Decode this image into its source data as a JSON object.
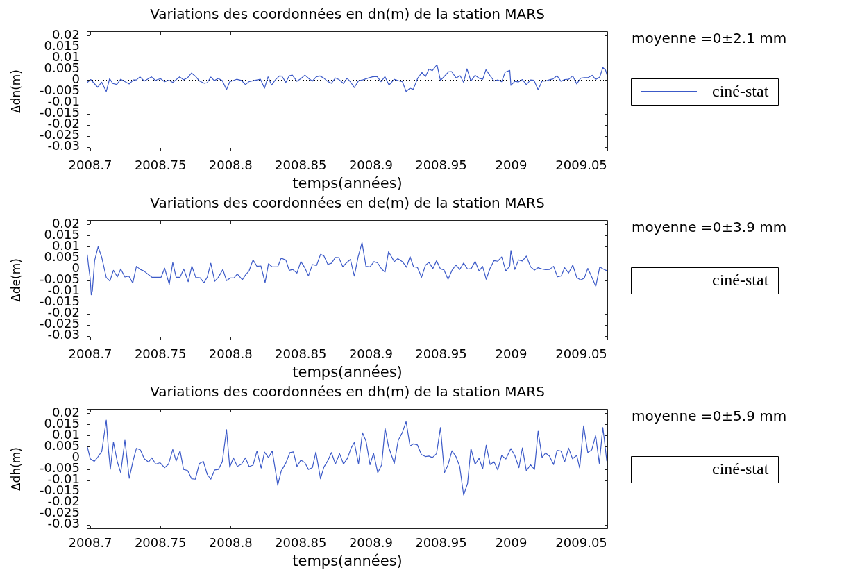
{
  "chart_data": [
    {
      "type": "line",
      "title": "Variations des coordonnées en dn(m) de la station MARS",
      "xlabel": "temps(années)",
      "ylabel": "Δdn(m)",
      "annotations": [
        "moyenne =0±2.1 mm"
      ],
      "legend": "right",
      "marker": "none",
      "line_style": "solid",
      "xlim": [
        2008.6975,
        2009.069
      ],
      "ylim": [
        -0.032,
        0.022
      ],
      "xticks": [
        2008.7,
        2008.75,
        2008.8,
        2008.85,
        2008.9,
        2008.95,
        2009,
        2009.05
      ],
      "yticks": [
        0.02,
        0.015,
        0.01,
        0.005,
        0,
        -0.005,
        -0.01,
        -0.015,
        -0.02,
        -0.025,
        -0.03
      ],
      "ref_lines": [
        {
          "axis": "y",
          "value": 0,
          "color": "#000000",
          "line_style": "dotted"
        }
      ],
      "x": [
        2008.6979,
        2008.7003,
        2008.7053,
        2008.7081,
        2008.7114,
        2008.7138,
        2008.716,
        2008.7189,
        2008.7217,
        2008.7278,
        2008.7308,
        2008.7329,
        2008.7354,
        2008.7385,
        2008.7436,
        2008.7464,
        2008.75,
        2008.753,
        2008.756,
        2008.7588,
        2008.7637,
        2008.7665,
        2008.7694,
        2008.7722,
        2008.7749,
        2008.7777,
        2008.7813,
        2008.7834,
        2008.7859,
        2008.7884,
        2008.7912,
        2008.7941,
        2008.7971,
        2008.7994,
        2008.8043,
        2008.8078,
        2008.8106,
        2008.813,
        2008.8158,
        2008.8213,
        2008.8242,
        2008.8267,
        2008.8292,
        2008.832,
        2008.8348,
        2008.8366,
        2008.8394,
        2008.8418,
        2008.844,
        2008.8473,
        2008.8501,
        2008.853,
        2008.8558,
        2008.8583,
        2008.8611,
        2008.8637,
        2008.8665,
        2008.8693,
        2008.8719,
        2008.8747,
        2008.8772,
        2008.8805,
        2008.883,
        2008.8854,
        2008.8882,
        2008.8912,
        2008.8945,
        2008.8978,
        2008.9011,
        2008.9044,
        2008.9072,
        2008.91,
        2008.9129,
        2008.9167,
        2008.9195,
        2008.9225,
        2008.9251,
        2008.9279,
        2008.9302,
        2008.9333,
        2008.9364,
        2008.9389,
        2008.9414,
        2008.9438,
        2008.9471,
        2008.9496,
        2008.9529,
        2008.9554,
        2008.9575,
        2008.9608,
        2008.9636,
        2008.9661,
        2008.9685,
        2008.9713,
        2008.9743,
        2008.9771,
        2008.9797,
        2008.982,
        2008.985,
        2008.9878,
        2008.9904,
        2008.9932,
        2008.9957,
        2008.999,
        2008.9998,
        2009.0026,
        2009.0052,
        2009.008,
        2009.0108,
        2009.0138,
        2009.0162,
        2009.0192,
        2009.022,
        2009.0245,
        2009.0273,
        2009.0299,
        2009.0327,
        2009.0355,
        2009.0381,
        2009.0409,
        2009.0439,
        2009.0467,
        2009.0495,
        2009.0521,
        2009.0546,
        2009.0577,
        2009.0603,
        2009.0631,
        2009.0653,
        2009.0672,
        2009.0686
      ],
      "series": [
        {
          "name": "ciné-stat",
          "color": "#3c5ac8",
          "values": [
            -0.001,
            0.0003,
            -0.0032,
            -0.0009,
            -0.0051,
            0.0007,
            -0.0015,
            -0.0019,
            0.0004,
            -0.0017,
            0.0001,
            0.0001,
            0.0015,
            -0.0004,
            0.0015,
            -0.0001,
            0.0007,
            -0.0007,
            0,
            -0.001,
            0.0015,
            0.0002,
            0.0011,
            0.0032,
            0.0018,
            -0.0003,
            -0.0014,
            -0.0011,
            0.0014,
            -0.0002,
            0.0008,
            -0.0002,
            -0.0042,
            -0.0007,
            0.0004,
            -0.0001,
            -0.002,
            -0.0007,
            -0.0003,
            0.0004,
            -0.0036,
            0.0015,
            -0.0022,
            0.0002,
            0.0019,
            0.0018,
            -0.001,
            0.002,
            0.0023,
            -0.0005,
            0.0007,
            0.0023,
            0.0007,
            -0.0004,
            0.0015,
            0.0019,
            0.0009,
            -0.0006,
            -0.0014,
            0.001,
            0.0003,
            -0.0015,
            0.0009,
            -0.0007,
            -0.0033,
            -0.0003,
            0.0002,
            0.0009,
            0.0015,
            0.0017,
            -0.0007,
            0.0016,
            -0.0022,
            0.0004,
            -0.0002,
            -0.0007,
            -0.0051,
            -0.0036,
            -0.0041,
            0.0008,
            0.0035,
            0.0016,
            0.005,
            0.0043,
            0.007,
            -0.0001,
            0.0021,
            0.0038,
            0.0039,
            0.001,
            0.002,
            -0.001,
            0.0051,
            -0.0004,
            0.0022,
            0.0009,
            0.0004,
            0.0047,
            0.002,
            -0.0004,
            0.0001,
            -0.0007,
            0.0036,
            0.0044,
            -0.0023,
            -0.0005,
            -0.0008,
            0.0003,
            -0.002,
            0.0001,
            0,
            -0.0043,
            -0.0004,
            -0.0004,
            0.0002,
            0.0006,
            0.002,
            -0.0005,
            0.0003,
            0.0004,
            0.0019,
            -0.0017,
            0.0009,
            0.0011,
            0.0011,
            0.0022,
            0.0003,
            0.0014,
            0.0057,
            0.0046,
            0.0018
          ]
        }
      ]
    },
    {
      "type": "line",
      "title": "Variations des coordonnées en de(m) de la station MARS",
      "xlabel": "temps(années)",
      "ylabel": "Δde(m)",
      "annotations": [
        "moyenne =0±3.9 mm"
      ],
      "legend": "right",
      "marker": "none",
      "line_style": "solid",
      "xlim": [
        2008.6975,
        2009.069
      ],
      "ylim": [
        -0.032,
        0.022
      ],
      "xticks": [
        2008.7,
        2008.75,
        2008.8,
        2008.85,
        2008.9,
        2008.95,
        2009,
        2009.05
      ],
      "yticks": [
        0.02,
        0.015,
        0.01,
        0.005,
        0,
        -0.005,
        -0.01,
        -0.015,
        -0.02,
        -0.025,
        -0.03
      ],
      "ref_lines": [
        {
          "axis": "y",
          "value": 0,
          "color": "#000000",
          "line_style": "dotted"
        }
      ],
      "x": [
        2008.6979,
        2008.6987,
        2008.6999,
        2008.7007,
        2008.7015,
        2008.7031,
        2008.7056,
        2008.7081,
        2008.7114,
        2008.714,
        2008.7165,
        2008.7193,
        2008.7217,
        2008.7247,
        2008.7275,
        2008.7303,
        2008.7329,
        2008.7357,
        2008.7382,
        2008.7439,
        2008.7505,
        2008.753,
        2008.7563,
        2008.7588,
        2008.7612,
        2008.764,
        2008.7666,
        2008.7698,
        2008.7724,
        2008.7752,
        2008.7782,
        2008.781,
        2008.7834,
        2008.7859,
        2008.7887,
        2008.7912,
        2008.7945,
        2008.7971,
        2008.7999,
        2008.8024,
        2008.8048,
        2008.8084,
        2008.8106,
        2008.8132,
        2008.816,
        2008.8188,
        2008.8216,
        2008.8246,
        2008.827,
        2008.8295,
        2008.8336,
        2008.8361,
        2008.8394,
        2008.8418,
        2008.8443,
        2008.8473,
        2008.8501,
        2008.8529,
        2008.8555,
        2008.8583,
        2008.8613,
        2008.8641,
        2008.8665,
        2008.8693,
        2008.8719,
        2008.8747,
        2008.8772,
        2008.88,
        2008.8826,
        2008.8854,
        2008.8882,
        2008.8909,
        2008.8937,
        2008.8965,
        2008.8994,
        2008.9022,
        2008.9047,
        2008.9077,
        2008.9101,
        2008.9126,
        2008.9167,
        2008.9192,
        2008.9225,
        2008.9254,
        2008.9279,
        2008.9304,
        2008.9332,
        2008.9361,
        2008.9389,
        2008.9414,
        2008.9442,
        2008.9468,
        2008.9496,
        2008.9521,
        2008.955,
        2008.9578,
        2008.9606,
        2008.9633,
        2008.9661,
        2008.9689,
        2008.9715,
        2008.9743,
        2008.9771,
        2008.9796,
        2008.9822,
        2008.985,
        2008.9878,
        2008.9904,
        2008.9932,
        2008.9962,
        2008.999,
        2008.9998,
        2009.0026,
        2009.0052,
        2009.008,
        2009.0108,
        2009.0138,
        2009.0166,
        2009.0192,
        2009.022,
        2009.0245,
        2009.0273,
        2009.0302,
        2009.033,
        2009.0357,
        2009.0381,
        2009.0409,
        2009.0439,
        2009.0467,
        2009.0495,
        2009.0521,
        2009.0546,
        2009.0577,
        2009.0603,
        2009.0631,
        2009.0656,
        2009.0686
      ],
      "series": [
        {
          "name": "ciné-stat",
          "color": "#3c5ac8",
          "values": [
            0.0064,
            0.0017,
            -0.004,
            -0.0116,
            -0.0097,
            0.0038,
            0.01,
            0.0054,
            -0.0038,
            -0.0054,
            -0.0006,
            -0.0035,
            0,
            -0.0036,
            -0.0032,
            -0.0063,
            0.0012,
            -0.0002,
            -0.0009,
            -0.0037,
            -0.0037,
            0.0004,
            -0.0069,
            0.0029,
            -0.0037,
            -0.0037,
            0,
            -0.0057,
            0.0013,
            -0.0038,
            -0.0039,
            -0.0062,
            -0.0036,
            0.0026,
            -0.0055,
            -0.0038,
            -0.0002,
            -0.0052,
            -0.004,
            -0.004,
            -0.0022,
            -0.0048,
            -0.0027,
            -0.0008,
            0.0041,
            0.0012,
            0.0014,
            -0.0061,
            0.0024,
            0.001,
            0.001,
            0.0049,
            0.004,
            -0.0006,
            -0.0002,
            -0.0018,
            0.0034,
            0.0006,
            -0.0031,
            0.002,
            0.0016,
            0.0066,
            0.0059,
            0.0021,
            0.0026,
            0.0052,
            0.0051,
            0.001,
            0.0028,
            0.0043,
            -0.0032,
            0.0054,
            0.0119,
            0.0012,
            0.001,
            0.0033,
            0.0028,
            0,
            -0.0014,
            0.0078,
            0.0033,
            0.0047,
            0.0033,
            0.0008,
            0.0056,
            0.001,
            0.0007,
            -0.0037,
            0.0017,
            0.003,
            0.0002,
            0.0037,
            0,
            -0.0004,
            -0.0046,
            -0.0006,
            0.0018,
            -0.0002,
            0.0027,
            0,
            0.0002,
            0.0034,
            -0.0009,
            0.0012,
            -0.0046,
            0.0004,
            0.0038,
            0.0035,
            0.0054,
            -0.0009,
            0.0014,
            0.0083,
            -0.0002,
            0.0041,
            0.0036,
            0.0058,
            0.001,
            -0.0005,
            0.0006,
            0,
            -0.0003,
            -0.0002,
            0.0012,
            -0.0035,
            -0.0031,
            0.0006,
            -0.0018,
            0.0018,
            -0.0038,
            -0.0049,
            -0.0041,
            0.0003,
            -0.004,
            -0.0078,
            0.0009,
            0,
            -0.0009
          ]
        }
      ]
    },
    {
      "type": "line",
      "title": "Variations des coordonnées en dh(m) de la station MARS",
      "xlabel": "temps(années)",
      "ylabel": "Δdh(m)",
      "annotations": [
        "moyenne =0±5.9 mm"
      ],
      "legend": "right",
      "marker": "none",
      "line_style": "solid",
      "xlim": [
        2008.6975,
        2009.069
      ],
      "ylim": [
        -0.032,
        0.022
      ],
      "xticks": [
        2008.7,
        2008.75,
        2008.8,
        2008.85,
        2008.9,
        2008.95,
        2009,
        2009.05
      ],
      "yticks": [
        0.02,
        0.015,
        0.01,
        0.005,
        0,
        -0.005,
        -0.01,
        -0.015,
        -0.02,
        -0.025,
        -0.03
      ],
      "ref_lines": [
        {
          "axis": "y",
          "value": 0,
          "color": "#000000",
          "line_style": "dotted"
        }
      ],
      "x": [
        2008.6979,
        2008.7,
        2008.7028,
        2008.7053,
        2008.7082,
        2008.7114,
        2008.713,
        2008.7143,
        2008.7165,
        2008.7193,
        2008.7217,
        2008.7247,
        2008.7278,
        2008.7305,
        2008.7329,
        2008.7357,
        2008.7385,
        2008.7415,
        2008.7439,
        2008.7467,
        2008.7497,
        2008.753,
        2008.7558,
        2008.7588,
        2008.7612,
        2008.764,
        2008.7665,
        2008.7694,
        2008.7722,
        2008.7749,
        2008.7777,
        2008.7806,
        2008.7834,
        2008.7859,
        2008.7887,
        2008.7913,
        2008.7941,
        2008.7971,
        2008.7994,
        2008.802,
        2008.8048,
        2008.8078,
        2008.8106,
        2008.8132,
        2008.816,
        2008.8188,
        2008.8218,
        2008.8242,
        2008.827,
        2008.8297,
        2008.8323,
        2008.8336,
        2008.8361,
        2008.8394,
        2008.8423,
        2008.8448,
        2008.8473,
        2008.8501,
        2008.8529,
        2008.8555,
        2008.8583,
        2008.8608,
        2008.8641,
        2008.8665,
        2008.8693,
        2008.8719,
        2008.8747,
        2008.8777,
        2008.8805,
        2008.8833,
        2008.8859,
        2008.8882,
        2008.8912,
        2008.894,
        2008.8966,
        2008.8994,
        2008.9019,
        2008.9049,
        2008.9077,
        2008.9101,
        2008.9126,
        2008.9167,
        2008.9195,
        2008.9225,
        2008.9251,
        2008.9279,
        2008.9304,
        2008.9332,
        2008.936,
        2008.9389,
        2008.9414,
        2008.9438,
        2008.9468,
        2008.9496,
        2008.9524,
        2008.955,
        2008.9578,
        2008.9606,
        2008.9633,
        2008.9661,
        2008.9689,
        2008.9713,
        2008.9743,
        2008.9771,
        2008.9797,
        2008.9822,
        2008.985,
        2008.9878,
        2008.9904,
        2008.9932,
        2008.9962,
        2008.9998,
        2009.0026,
        2009.0055,
        2009.008,
        2009.0108,
        2009.0138,
        2009.0166,
        2009.0192,
        2009.022,
        2009.0245,
        2009.0273,
        2009.0302,
        2009.0327,
        2009.0355,
        2009.0381,
        2009.0409,
        2009.0437,
        2009.0467,
        2009.0488,
        2009.0516,
        2009.0546,
        2009.0574,
        2009.0602,
        2009.0628,
        2009.0653,
        2009.0664,
        2009.0681
      ],
      "series": [
        {
          "name": "ciné-stat",
          "color": "#3c5ac8",
          "values": [
            0.005,
            -0.0004,
            -0.0016,
            0.0003,
            0.0029,
            0.017,
            0.0034,
            -0.0051,
            0.0071,
            -0.0018,
            -0.0067,
            0.0079,
            -0.0092,
            -0.0013,
            0.0043,
            0.0036,
            -0.0004,
            -0.0019,
            0,
            -0.0028,
            -0.0022,
            -0.0044,
            -0.0028,
            0.0038,
            -0.0014,
            0.0032,
            -0.0052,
            -0.0057,
            -0.0094,
            -0.0096,
            -0.0026,
            -0.0016,
            -0.0075,
            -0.0096,
            -0.0054,
            -0.0052,
            -0.0018,
            0.0127,
            -0.0042,
            0,
            -0.0038,
            -0.0028,
            0,
            -0.0039,
            -0.0033,
            0.0031,
            -0.0046,
            0.0026,
            0.0001,
            0.0031,
            -0.007,
            -0.0123,
            -0.0059,
            -0.0023,
            0.0024,
            0.0027,
            -0.0039,
            -0.001,
            -0.0021,
            -0.0052,
            -0.0044,
            0.0026,
            -0.0094,
            -0.0042,
            -0.0013,
            0.0024,
            -0.0028,
            0.0019,
            -0.0028,
            -0.0002,
            0.0044,
            0.0069,
            -0.0028,
            0.0113,
            0.0074,
            -0.0031,
            0.0021,
            -0.0067,
            -0.0031,
            0.0133,
            0.005,
            -0.0025,
            0.0079,
            0.0115,
            0.0163,
            0.0053,
            0.0063,
            0.0058,
            0.0015,
            0.0006,
            0.0008,
            0.0001,
            0.0019,
            0.0136,
            -0.0067,
            -0.0031,
            0.0032,
            0.0006,
            -0.0039,
            -0.0167,
            -0.0115,
            0.0042,
            -0.0029,
            -0.0002,
            -0.0049,
            0.0057,
            -0.003,
            -0.0018,
            -0.0054,
            0.001,
            -0.0005,
            0.0042,
            0.001,
            -0.0044,
            0.0045,
            -0.0058,
            -0.0031,
            -0.0052,
            0.012,
            0.0002,
            0.0022,
            0.0008,
            -0.003,
            0.0034,
            0.0031,
            -0.0018,
            0.0044,
            -0.0004,
            0.0011,
            -0.0046,
            0.0144,
            0.0024,
            0.0036,
            0.01,
            -0.0025,
            0.0136,
            0.0081,
            -0.0013
          ]
        }
      ]
    }
  ]
}
